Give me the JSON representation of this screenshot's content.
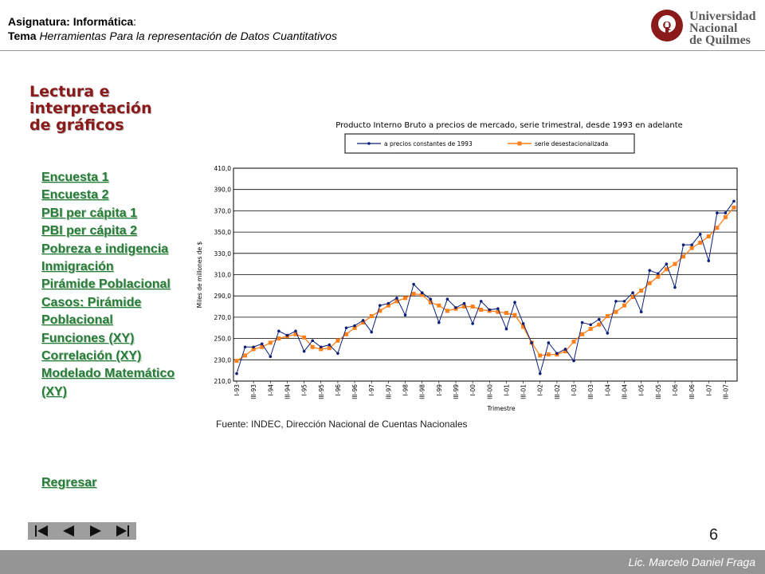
{
  "header": {
    "course_label": "Asignatura:",
    "course_value": "Informática",
    "course_suffix": ":",
    "topic_label": "Tema",
    "topic_value": "Herramientas Para la representación de Datos Cuantitativos"
  },
  "logo": {
    "line1": "Universidad",
    "line2": "Nacional",
    "line3": "de Quilmes",
    "mark": "Q"
  },
  "section_title": "Lectura e interpretación de gráficos",
  "nav": {
    "items": [
      "Encuesta 1",
      "Encuesta 2",
      "PBI per cápita 1",
      "PBI per cápita 2",
      "Pobreza e indigencia",
      "Inmigración",
      "Pirámide Poblacional",
      "Casos: Pirámide Poblacional",
      "Funciones (XY)",
      "Correlación (XY)",
      "Modelado Matemático (XY)"
    ],
    "back": "Regresar"
  },
  "pager": {
    "icons": [
      "first-icon",
      "prev-icon",
      "next-icon",
      "last-icon"
    ]
  },
  "page_number": "6",
  "footer": {
    "author": "Lic. Marcelo Daniel Fraga"
  },
  "source_note": "Fuente: INDEC, Dirección Nacional de Cuentas Nacionales",
  "colors": {
    "series1": "#0b1f7a",
    "series2": "#ff7f1a",
    "title": "#8b1a1a",
    "link": "#2a7a39",
    "bar": "#959595"
  },
  "chart_data": {
    "type": "line",
    "title": "Producto Interno Bruto a precios de mercado, serie trimestral, desde 1993 en adelante",
    "xlabel": "Trimestre",
    "ylabel": "Miles de millones de $",
    "ylim": [
      210,
      410
    ],
    "yticks": [
      "210,0",
      "230,0",
      "250,0",
      "270,0",
      "290,0",
      "310,0",
      "330,0",
      "350,0",
      "370,0",
      "390,0",
      "410,0"
    ],
    "grid": "horizontal",
    "legend_position": "top",
    "xticks": [
      "I-93",
      "III-93",
      "I-94",
      "III-94",
      "I-95",
      "III-95",
      "I-96",
      "III-96",
      "I-97",
      "III-97",
      "I-98",
      "III-98",
      "I-99",
      "III-99",
      "I-00",
      "III-00",
      "I-01",
      "III-01",
      "I-02",
      "III-02",
      "I-03",
      "III-03",
      "I-04",
      "III-04",
      "I-05",
      "III-05",
      "I-06",
      "III-06",
      "I-07",
      "III-07"
    ],
    "series": [
      {
        "name": "a precios constantes de 1993",
        "values": [
          217,
          242,
          242,
          245,
          233,
          257,
          253,
          257,
          238,
          248,
          242,
          244,
          236,
          260,
          262,
          267,
          256,
          281,
          283,
          288,
          272,
          301,
          293,
          287,
          265,
          287,
          279,
          283,
          264,
          285,
          277,
          278,
          259,
          284,
          264,
          246,
          217,
          246,
          236,
          240,
          229,
          265,
          263,
          268,
          255,
          285,
          285,
          293,
          275,
          314,
          311,
          320,
          298,
          338,
          338,
          348,
          323,
          368,
          368,
          379
        ]
      },
      {
        "name": "serie desestacionalizada",
        "values": [
          229,
          234,
          240,
          242,
          246,
          250,
          252,
          254,
          251,
          242,
          240,
          241,
          248,
          254,
          260,
          265,
          271,
          276,
          281,
          285,
          288,
          292,
          291,
          284,
          281,
          276,
          278,
          280,
          280,
          277,
          276,
          275,
          274,
          272,
          261,
          246,
          234,
          235,
          235,
          238,
          247,
          254,
          259,
          263,
          271,
          275,
          281,
          289,
          295,
          302,
          308,
          315,
          320,
          327,
          335,
          340,
          346,
          354,
          364,
          373
        ]
      }
    ]
  }
}
